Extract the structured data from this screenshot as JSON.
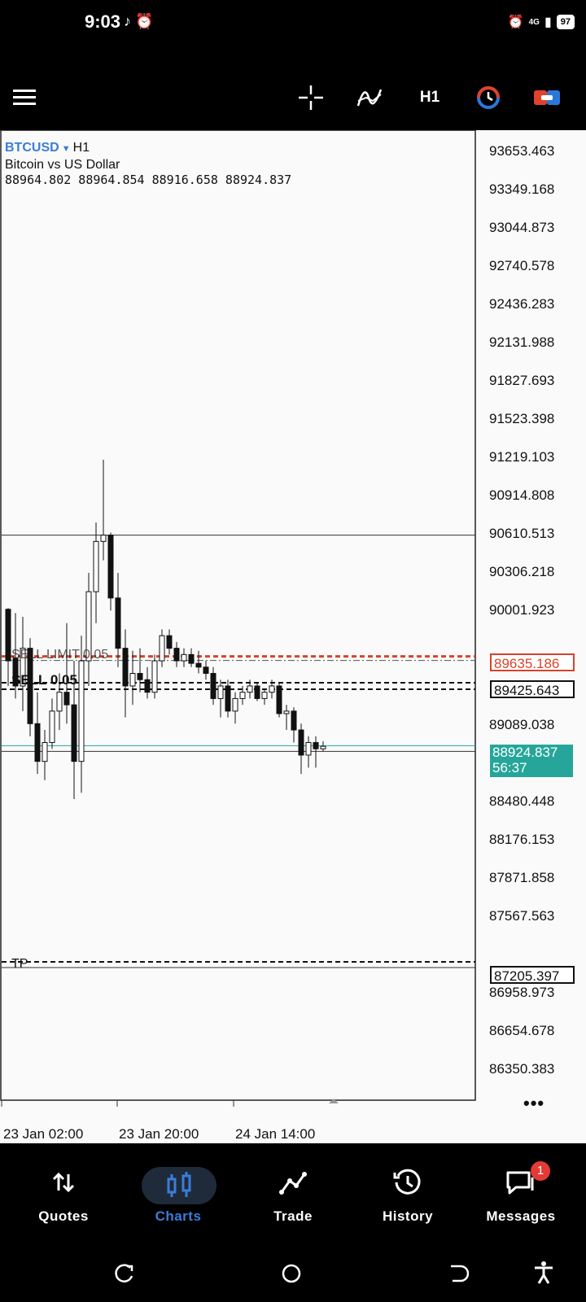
{
  "status_bar": {
    "time": "9:03",
    "battery": "97",
    "left_icons": "♪ ⏰",
    "network": "4G"
  },
  "toolbar": {
    "menu_icon": "hamburger-icon",
    "crosshair_icon": "crosshair-icon",
    "indicators_icon": "indicators-icon",
    "timeframe": "H1",
    "objects_icon": "objects-icon",
    "trade_icon": "trade-icon"
  },
  "chart": {
    "symbol": "BTCUSD",
    "timeframe": "H1",
    "description": "Bitcoin vs US Dollar",
    "ohlc": "88964.802 88964.854 88916.658 88924.837",
    "price_labels": [
      "93653.463",
      "93349.168",
      "93044.873",
      "92740.578",
      "92436.283",
      "92131.988",
      "91827.693",
      "91523.398",
      "91219.103",
      "90914.808",
      "90610.513",
      "90306.218",
      "90001.923",
      "89089.038",
      "88480.448",
      "88176.153",
      "87871.858",
      "87567.563",
      "86958.973",
      "86654.678",
      "86350.383"
    ],
    "time_labels": [
      "23 Jan 02:00",
      "23 Jan 20:00",
      "24 Jan 14:00"
    ],
    "order_labels": {
      "sell_limit": "SELL LIMIT 0.05",
      "sell": "SELL 0.05",
      "tp": "TP"
    },
    "tags": {
      "sell_limit_price": "89635.186",
      "sell_price": "89425.643",
      "bid_price": "88924.837",
      "countdown": "56:37",
      "tp_price": "87205.397"
    },
    "more_icon": "more-icon"
  },
  "chart_data": {
    "type": "candlestick",
    "ylim": [
      86300,
      93800
    ],
    "candles": [
      [
        90010,
        90020,
        89400,
        89600
      ],
      [
        89620,
        89980,
        89300,
        89400
      ],
      [
        89400,
        89950,
        89200,
        89700
      ],
      [
        89700,
        89780,
        89000,
        89100
      ],
      [
        89100,
        89350,
        88700,
        88800
      ],
      [
        88800,
        89050,
        88650,
        88950
      ],
      [
        88950,
        89300,
        88900,
        89200
      ],
      [
        89200,
        89500,
        89050,
        89350
      ],
      [
        89350,
        89900,
        89100,
        89250
      ],
      [
        89250,
        89600,
        88500,
        88800
      ],
      [
        88800,
        89800,
        88550,
        89600
      ],
      [
        89600,
        90300,
        89400,
        90150
      ],
      [
        90150,
        90700,
        89900,
        90550
      ],
      [
        90550,
        91200,
        90400,
        90600
      ],
      [
        90600,
        90620,
        90000,
        90100
      ],
      [
        90100,
        90300,
        89550,
        89700
      ],
      [
        89700,
        89850,
        89150,
        89400
      ],
      [
        89400,
        89680,
        89250,
        89500
      ],
      [
        89500,
        89700,
        89350,
        89450
      ],
      [
        89450,
        89550,
        89300,
        89350
      ],
      [
        89350,
        89650,
        89300,
        89600
      ],
      [
        89600,
        89850,
        89550,
        89800
      ],
      [
        89800,
        89850,
        89650,
        89700
      ],
      [
        89700,
        89750,
        89550,
        89600
      ],
      [
        89600,
        89700,
        89550,
        89650
      ],
      [
        89650,
        89700,
        89550,
        89580
      ],
      [
        89580,
        89680,
        89500,
        89550
      ],
      [
        89550,
        89600,
        89450,
        89500
      ],
      [
        89500,
        89550,
        89250,
        89300
      ],
      [
        89300,
        89450,
        89150,
        89400
      ],
      [
        89400,
        89450,
        89150,
        89200
      ],
      [
        89200,
        89350,
        89100,
        89300
      ],
      [
        89300,
        89400,
        89250,
        89350
      ],
      [
        89350,
        89450,
        89300,
        89400
      ],
      [
        89400,
        89420,
        89280,
        89300
      ],
      [
        89300,
        89380,
        89250,
        89350
      ],
      [
        89350,
        89450,
        89300,
        89400
      ],
      [
        89400,
        89430,
        89150,
        89180
      ],
      [
        89180,
        89250,
        89050,
        89200
      ],
      [
        89200,
        89230,
        88950,
        89050
      ],
      [
        89050,
        89100,
        88700,
        88850
      ],
      [
        88850,
        89000,
        88750,
        88950
      ],
      [
        88950,
        89000,
        88750,
        88900
      ],
      [
        88900,
        88960,
        88880,
        88920
      ]
    ],
    "levels": {
      "sell_limit": 89635.186,
      "sell": 89425.643,
      "bid": 88924.837,
      "tp": 87205.397,
      "high_line": 90600
    }
  },
  "bottom_nav": [
    {
      "label": "Quotes",
      "icon": "quotes-icon",
      "active": false
    },
    {
      "label": "Charts",
      "icon": "charts-icon",
      "active": true
    },
    {
      "label": "Trade",
      "icon": "trade-icon",
      "active": false
    },
    {
      "label": "History",
      "icon": "history-icon",
      "active": false
    },
    {
      "label": "Messages",
      "icon": "messages-icon",
      "active": false,
      "badge": "1"
    }
  ],
  "colors": {
    "accent": "#3b7dd8",
    "bid": "#26a69a",
    "sell_limit": "#d8432b",
    "active_nav_bg": "#1f2b3a"
  }
}
